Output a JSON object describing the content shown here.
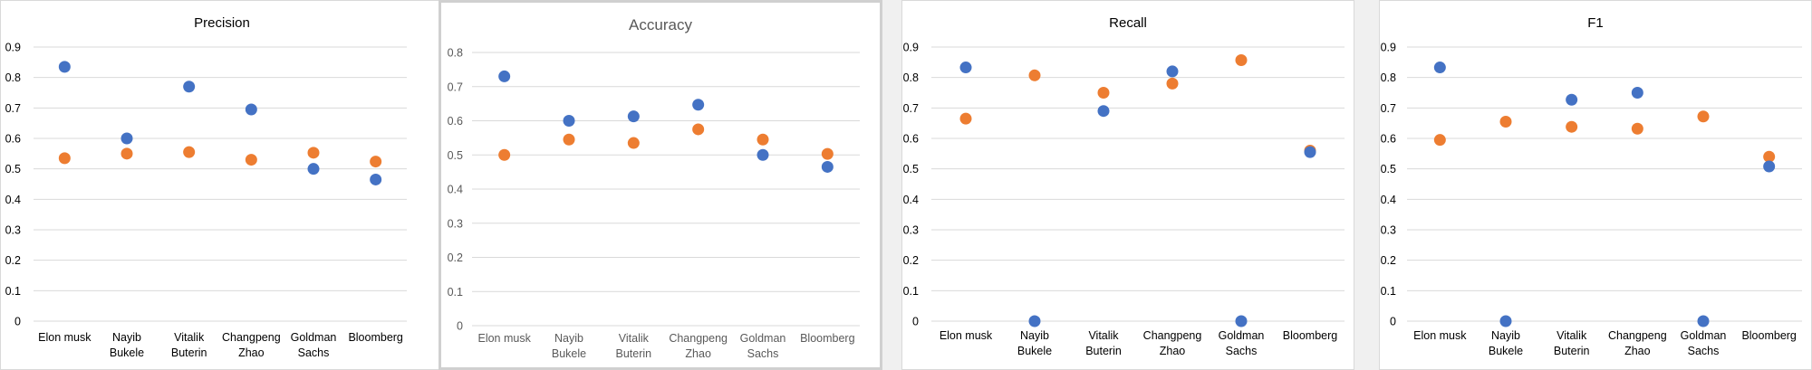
{
  "colors": {
    "series_blue": "#4472c4",
    "series_orange": "#ed7d31"
  },
  "chart_data": [
    {
      "type": "scatter",
      "title": "Precision",
      "categories": [
        "Elon musk",
        "Nayib Bukele",
        "Vitalik Buterin",
        "Changpeng Zhao",
        "Goldman Sachs",
        "Bloomberg"
      ],
      "ylim": [
        0,
        0.9
      ],
      "yticks": [
        "0",
        "0.1",
        "0.2",
        "0.3",
        "0.4",
        "0.5",
        "0.6",
        "0.7",
        "0.8",
        "0.9"
      ],
      "grid": true,
      "series": [
        {
          "color": "#4472c4",
          "values": [
            0.835,
            0.6,
            0.77,
            0.695,
            0.5,
            0.465
          ]
        },
        {
          "color": "#ed7d31",
          "values": [
            0.535,
            0.55,
            0.555,
            0.53,
            0.553,
            0.524
          ]
        }
      ]
    },
    {
      "type": "scatter",
      "title": "Accuracy",
      "categories": [
        "Elon musk",
        "Nayib Bukele",
        "Vitalik Buterin",
        "Changpeng Zhao",
        "Goldman Sachs",
        "Bloomberg"
      ],
      "ylim": [
        0,
        0.8
      ],
      "yticks": [
        "0",
        "0.1",
        "0.2",
        "0.3",
        "0.4",
        "0.5",
        "0.6",
        "0.7",
        "0.8"
      ],
      "grid": true,
      "series": [
        {
          "color": "#4472c4",
          "values": [
            0.73,
            0.6,
            0.613,
            0.647,
            0.5,
            0.465
          ]
        },
        {
          "color": "#ed7d31",
          "values": [
            0.5,
            0.545,
            0.535,
            0.575,
            0.545,
            0.503
          ]
        }
      ]
    },
    {
      "type": "scatter",
      "title": "Recall",
      "categories": [
        "Elon musk",
        "Nayib Bukele",
        "Vitalik Buterin",
        "Changpeng Zhao",
        "Goldman Sachs",
        "Bloomberg"
      ],
      "ylim": [
        0,
        0.9
      ],
      "yticks": [
        "0",
        "0.1",
        "0.2",
        "0.3",
        "0.4",
        "0.5",
        "0.6",
        "0.7",
        "0.8",
        "0.9"
      ],
      "grid": true,
      "series": [
        {
          "color": "#4472c4",
          "values": [
            0.833,
            0.0,
            0.69,
            0.82,
            0.0,
            0.555
          ]
        },
        {
          "color": "#ed7d31",
          "values": [
            0.665,
            0.807,
            0.75,
            0.78,
            0.857,
            0.56
          ]
        }
      ]
    },
    {
      "type": "scatter",
      "title": "F1",
      "categories": [
        "Elon musk",
        "Nayib Bukele",
        "Vitalik Buterin",
        "Changpeng Zhao",
        "Goldman Sachs",
        "Bloomberg"
      ],
      "ylim": [
        0,
        0.9
      ],
      "yticks": [
        "0",
        "0.1",
        "0.2",
        "0.3",
        "0.4",
        "0.5",
        "0.6",
        "0.7",
        "0.8",
        "0.9"
      ],
      "grid": true,
      "series": [
        {
          "color": "#4472c4",
          "values": [
            0.833,
            0.0,
            0.727,
            0.75,
            0.0,
            0.508
          ]
        },
        {
          "color": "#ed7d31",
          "values": [
            0.595,
            0.655,
            0.638,
            0.632,
            0.672,
            0.54
          ]
        }
      ]
    }
  ]
}
